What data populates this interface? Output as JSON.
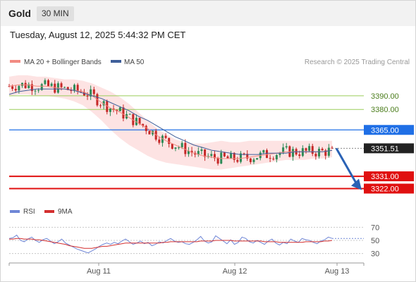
{
  "header": {
    "instrument": "Gold",
    "timeframe": "30 MIN",
    "timestamp": "Tuesday, August 12, 2025 5:44:32 PM CET"
  },
  "legend": {
    "ma20_label": "MA 20 + Bollinger Bands",
    "ma50_label": "MA 50",
    "credit": "Research © 2025 Trading Central",
    "rsi_label": "RSI",
    "rsi_ma_label": "9MA"
  },
  "colors": {
    "ma20": "#f28b82",
    "ma50": "#3f5f9a",
    "bollinger_fill": "#fde3e3",
    "resistance": "#9acd5a",
    "pivot": "#1f6fe6",
    "support": "#e01010",
    "last_price": "#222222",
    "arrow": "#2a62b5",
    "candle_up": "#2e8b57",
    "candle_down": "#c62828",
    "rsi": "#6f86d6",
    "rsi_ma": "#d32f2f"
  },
  "chart_data": [
    {
      "type": "candlestick",
      "x_ticks": [
        "Aug 11",
        "Aug 12",
        "Aug 13"
      ],
      "ylim": [
        3314,
        3408
      ],
      "price_levels": [
        {
          "label": "3390.00",
          "value": 3390,
          "kind": "resistance"
        },
        {
          "label": "3380.00",
          "value": 3380,
          "kind": "resistance"
        },
        {
          "label": "3365.00",
          "value": 3365,
          "kind": "pivot"
        },
        {
          "label": "3351.51",
          "value": 3351.51,
          "kind": "last"
        },
        {
          "label": "3331.00",
          "value": 3331,
          "kind": "support"
        },
        {
          "label": "3322.00",
          "value": 3322,
          "kind": "support"
        }
      ],
      "ma20": [
        3397,
        3398,
        3398,
        3397,
        3397,
        3396,
        3395,
        3394,
        3393,
        3390,
        3385,
        3381,
        3378,
        3374,
        3370,
        3366,
        3361,
        3357,
        3354,
        3351,
        3348,
        3346,
        3345,
        3344,
        3344,
        3344,
        3345,
        3346,
        3347,
        3348,
        3349,
        3349,
        3349,
        3349,
        3349,
        3350
      ],
      "ma50": [
        3391,
        3393,
        3394,
        3395,
        3395,
        3395,
        3395,
        3394,
        3392,
        3390,
        3388,
        3385,
        3382,
        3379,
        3375,
        3372,
        3368,
        3364,
        3360,
        3357,
        3354,
        3352,
        3350,
        3349,
        3348,
        3347,
        3347,
        3347,
        3348,
        3348,
        3348,
        3349,
        3349,
        3349,
        3349,
        3350
      ],
      "bollinger_upper": [
        3404,
        3405,
        3405,
        3404,
        3404,
        3403,
        3402,
        3402,
        3401,
        3399,
        3396,
        3393,
        3389,
        3384,
        3378,
        3372,
        3366,
        3362,
        3358,
        3356,
        3355,
        3355,
        3356,
        3357,
        3356,
        3356,
        3357,
        3357,
        3357,
        3357,
        3357,
        3357,
        3357,
        3357,
        3357,
        3357
      ],
      "bollinger_lower": [
        3390,
        3391,
        3391,
        3390,
        3390,
        3389,
        3388,
        3386,
        3383,
        3378,
        3372,
        3365,
        3359,
        3354,
        3350,
        3346,
        3343,
        3341,
        3340,
        3339,
        3338,
        3337,
        3336,
        3336,
        3337,
        3338,
        3339,
        3340,
        3341,
        3342,
        3343,
        3343,
        3343,
        3344,
        3344,
        3345
      ],
      "forecast_arrow": {
        "from": 3351.51,
        "to": 3322
      }
    },
    {
      "type": "line",
      "y_ticks": [
        70,
        50,
        30
      ],
      "ylim": [
        20,
        80
      ],
      "series": [
        {
          "name": "RSI",
          "values": [
            53,
            54,
            58,
            50,
            48,
            52,
            55,
            50,
            47,
            51,
            53,
            49,
            45,
            48,
            52,
            46,
            43,
            40,
            37,
            35,
            33,
            31,
            34,
            37,
            41,
            44,
            46,
            44,
            47,
            45,
            49,
            52,
            48,
            44,
            46,
            49,
            45,
            47,
            42,
            44,
            48,
            46,
            50,
            53,
            49,
            47,
            48,
            45,
            44,
            47,
            51,
            56,
            49,
            46,
            48,
            57,
            53,
            49,
            45,
            51,
            44,
            47,
            55,
            53,
            48,
            46,
            50,
            47,
            44,
            49,
            52,
            46,
            43,
            47,
            45,
            52,
            49,
            47,
            53,
            51,
            50,
            47,
            45,
            49,
            51,
            55,
            53
          ]
        },
        {
          "name": "9MA",
          "values": [
            52,
            52,
            53,
            53,
            52,
            52,
            52,
            51,
            51,
            50,
            49,
            48,
            47,
            46,
            45,
            44,
            42,
            41,
            40,
            39,
            38,
            38,
            38,
            39,
            40,
            41,
            41,
            42,
            43,
            44,
            45,
            46,
            46,
            46,
            46,
            46,
            46,
            46,
            46,
            46,
            46,
            47,
            47,
            48,
            48,
            48,
            48,
            48,
            48,
            48,
            48,
            49,
            49,
            49,
            49,
            50,
            50,
            50,
            50,
            50,
            49,
            49,
            49,
            49,
            49,
            49,
            49,
            49,
            48,
            48,
            48,
            48,
            47,
            47,
            47,
            47,
            47,
            47,
            47,
            48,
            48,
            48,
            48,
            48,
            49,
            49,
            50
          ]
        }
      ]
    }
  ]
}
